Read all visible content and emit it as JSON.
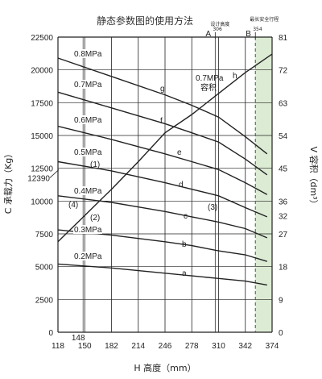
{
  "chart_data": {
    "type": "line",
    "title": "静态参数图的使用方法",
    "xlabel": "H 高度（mm）",
    "ylabel_left": "C 承载力（Kg）",
    "ylabel_right": "V 容积（dm³）",
    "x_ticks": [
      118,
      150,
      182,
      214,
      246,
      278,
      310,
      342,
      374
    ],
    "x_extra_tick": 148,
    "y_left_ticks": [
      0,
      2500,
      5000,
      7500,
      10000,
      12500,
      15000,
      17500,
      20000,
      22500
    ],
    "y_left_extra_tick": 12390,
    "y_right_ticks": [
      0,
      9,
      18,
      27,
      32,
      36,
      45,
      54,
      63,
      72,
      81
    ],
    "xlim": [
      118,
      374
    ],
    "ylim_left": [
      0,
      22500
    ],
    "ylim_right": [
      0,
      81
    ],
    "series": [
      {
        "name": "0.2MPa",
        "curve": "a",
        "x": [
          118,
          182,
          246,
          278,
          310,
          342,
          368
        ],
        "y": [
          5200,
          4900,
          4500,
          4300,
          4100,
          3900,
          3600
        ]
      },
      {
        "name": "0.3MPa",
        "curve": "b",
        "x": [
          118,
          182,
          246,
          278,
          310,
          342,
          368
        ],
        "y": [
          7800,
          7400,
          6900,
          6600,
          6200,
          5900,
          5400
        ]
      },
      {
        "name": "0.4MPa",
        "curve": "c",
        "x": [
          118,
          182,
          246,
          278,
          310,
          342,
          368
        ],
        "y": [
          10400,
          9900,
          9200,
          8800,
          8400,
          7900,
          7200
        ]
      },
      {
        "name": "0.5MPa",
        "curve": "d",
        "x": [
          118,
          182,
          246,
          278,
          310,
          342,
          368
        ],
        "y": [
          13000,
          12300,
          11400,
          10900,
          10400,
          9500,
          8800
        ]
      },
      {
        "name": "0.6MPa",
        "curve": "e",
        "x": [
          118,
          182,
          246,
          278,
          310,
          342,
          368
        ],
        "y": [
          15700,
          14700,
          13600,
          13000,
          12400,
          11400,
          10500
        ]
      },
      {
        "name": "0.7MPa",
        "curve": "f",
        "x": [
          118,
          182,
          246,
          278,
          310,
          342,
          368
        ],
        "y": [
          18300,
          17100,
          15900,
          15200,
          14500,
          13200,
          12000
        ]
      },
      {
        "name": "0.8MPa",
        "curve": "g",
        "x": [
          118,
          182,
          246,
          278,
          310,
          342,
          368
        ],
        "y": [
          20900,
          19500,
          18100,
          17300,
          16400,
          14900,
          13600
        ]
      },
      {
        "name": "0.7MPa 容积",
        "curve": "h",
        "x": [
          118,
          150,
          182,
          214,
          246,
          278,
          310,
          342,
          374
        ],
        "y": [
          6900,
          8900,
          10900,
          13000,
          15200,
          16600,
          18200,
          19800,
          21200
        ]
      }
    ],
    "annotations": {
      "A_label": "A",
      "A_top": "设计高度",
      "A_value": "306",
      "B_label": "B",
      "B_top": "最长安全行程",
      "B_value": "354",
      "markers": [
        "(1)",
        "(2)",
        "(3)",
        "(4)"
      ]
    }
  }
}
